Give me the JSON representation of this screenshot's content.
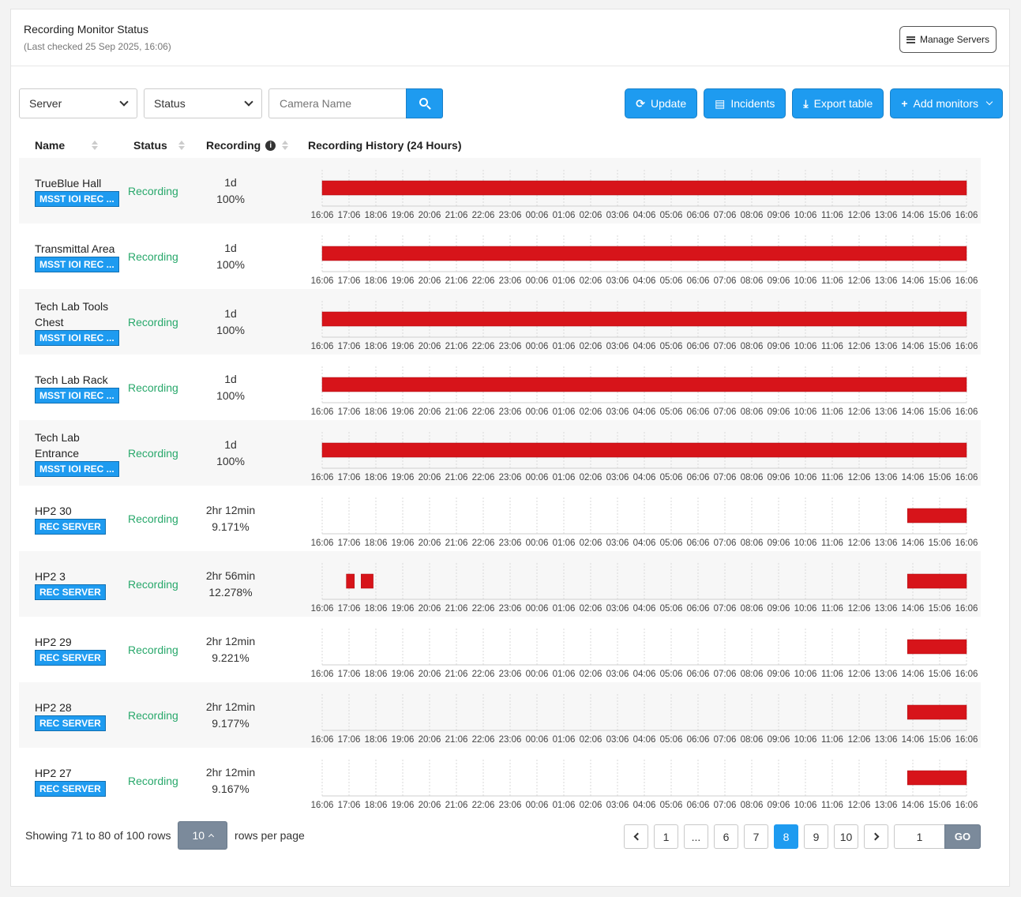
{
  "header": {
    "title": "Recording Monitor Status",
    "last_checked": "(Last checked 25 Sep 2025, 16:06)",
    "manage_servers": "Manage Servers"
  },
  "filters": {
    "server": "Server",
    "status": "Status",
    "camera_placeholder": "Camera Name"
  },
  "actions": {
    "update": "Update",
    "incidents": "Incidents",
    "export": "Export table",
    "add_monitors": "Add monitors"
  },
  "table": {
    "columns": {
      "name": "Name",
      "status": "Status",
      "recording": "Recording",
      "history": "Recording History (24 Hours)"
    },
    "time_labels": [
      "16:06",
      "17:06",
      "18:06",
      "19:06",
      "20:06",
      "21:06",
      "22:06",
      "23:06",
      "00:06",
      "01:06",
      "02:06",
      "03:06",
      "04:06",
      "05:06",
      "06:06",
      "07:06",
      "08:06",
      "09:06",
      "10:06",
      "11:06",
      "12:06",
      "13:06",
      "14:06",
      "15:06",
      "16:06"
    ],
    "bar_color": "#d7141a",
    "status_color": "#28a86b",
    "rows": [
      {
        "name": "TrueBlue Hall",
        "tag": "MSST IOI REC ...",
        "status": "Recording",
        "duration": "1d",
        "percent": "100%",
        "segments": [
          [
            0,
            24
          ]
        ]
      },
      {
        "name": "Transmittal Area",
        "tag": "MSST IOI REC ...",
        "status": "Recording",
        "duration": "1d",
        "percent": "100%",
        "segments": [
          [
            0,
            24
          ]
        ]
      },
      {
        "name": "Tech Lab Tools Chest",
        "tag": "MSST IOI REC ...",
        "status": "Recording",
        "duration": "1d",
        "percent": "100%",
        "segments": [
          [
            0,
            24
          ]
        ]
      },
      {
        "name": "Tech Lab Rack",
        "tag": "MSST IOI REC ...",
        "status": "Recording",
        "duration": "1d",
        "percent": "100%",
        "segments": [
          [
            0,
            24
          ]
        ]
      },
      {
        "name": "Tech Lab Entrance",
        "tag": "MSST IOI REC ...",
        "status": "Recording",
        "duration": "1d",
        "percent": "100%",
        "segments": [
          [
            0,
            24
          ]
        ]
      },
      {
        "name": "HP2 30",
        "tag": "REC SERVER",
        "status": "Recording",
        "duration": "2hr 12min",
        "percent": "9.171%",
        "segments": [
          [
            21.8,
            24
          ]
        ]
      },
      {
        "name": "HP2 3",
        "tag": "REC SERVER",
        "status": "Recording",
        "duration": "2hr 56min",
        "percent": "12.278%",
        "segments": [
          [
            0.9,
            1.2
          ],
          [
            1.45,
            1.9
          ],
          [
            21.8,
            24
          ]
        ]
      },
      {
        "name": "HP2 29",
        "tag": "REC SERVER",
        "status": "Recording",
        "duration": "2hr 12min",
        "percent": "9.221%",
        "segments": [
          [
            21.8,
            24
          ]
        ]
      },
      {
        "name": "HP2 28",
        "tag": "REC SERVER",
        "status": "Recording",
        "duration": "2hr 12min",
        "percent": "9.177%",
        "segments": [
          [
            21.8,
            24
          ]
        ]
      },
      {
        "name": "HP2 27",
        "tag": "REC SERVER",
        "status": "Recording",
        "duration": "2hr 12min",
        "percent": "9.167%",
        "segments": [
          [
            21.8,
            24
          ]
        ]
      }
    ]
  },
  "footer": {
    "showing": "Showing 71 to 80 of 100 rows",
    "page_size": "10",
    "rows_per_page": "rows per page",
    "pages": [
      "1",
      "...",
      "6",
      "7",
      "8",
      "9",
      "10"
    ],
    "active_page": "8",
    "goto_value": "1",
    "go": "GO"
  }
}
